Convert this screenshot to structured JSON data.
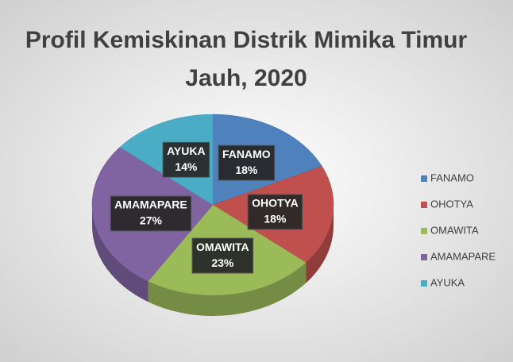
{
  "chart_data": {
    "type": "pie",
    "title": "Profil Kemiskinan Distrik Mimika Timur Jauh, 2020",
    "categories": [
      "FANAMO",
      "OHOTYA",
      "OMAWITA",
      "AMAMAPARE",
      "AYUKA"
    ],
    "values": [
      18,
      18,
      23,
      27,
      14
    ],
    "value_labels": [
      "18%",
      "18%",
      "23%",
      "27%",
      "14%"
    ],
    "colors": [
      "#4f81bd",
      "#c0504d",
      "#9bbb59",
      "#8064a2",
      "#4bacc6"
    ],
    "legend": "right"
  }
}
